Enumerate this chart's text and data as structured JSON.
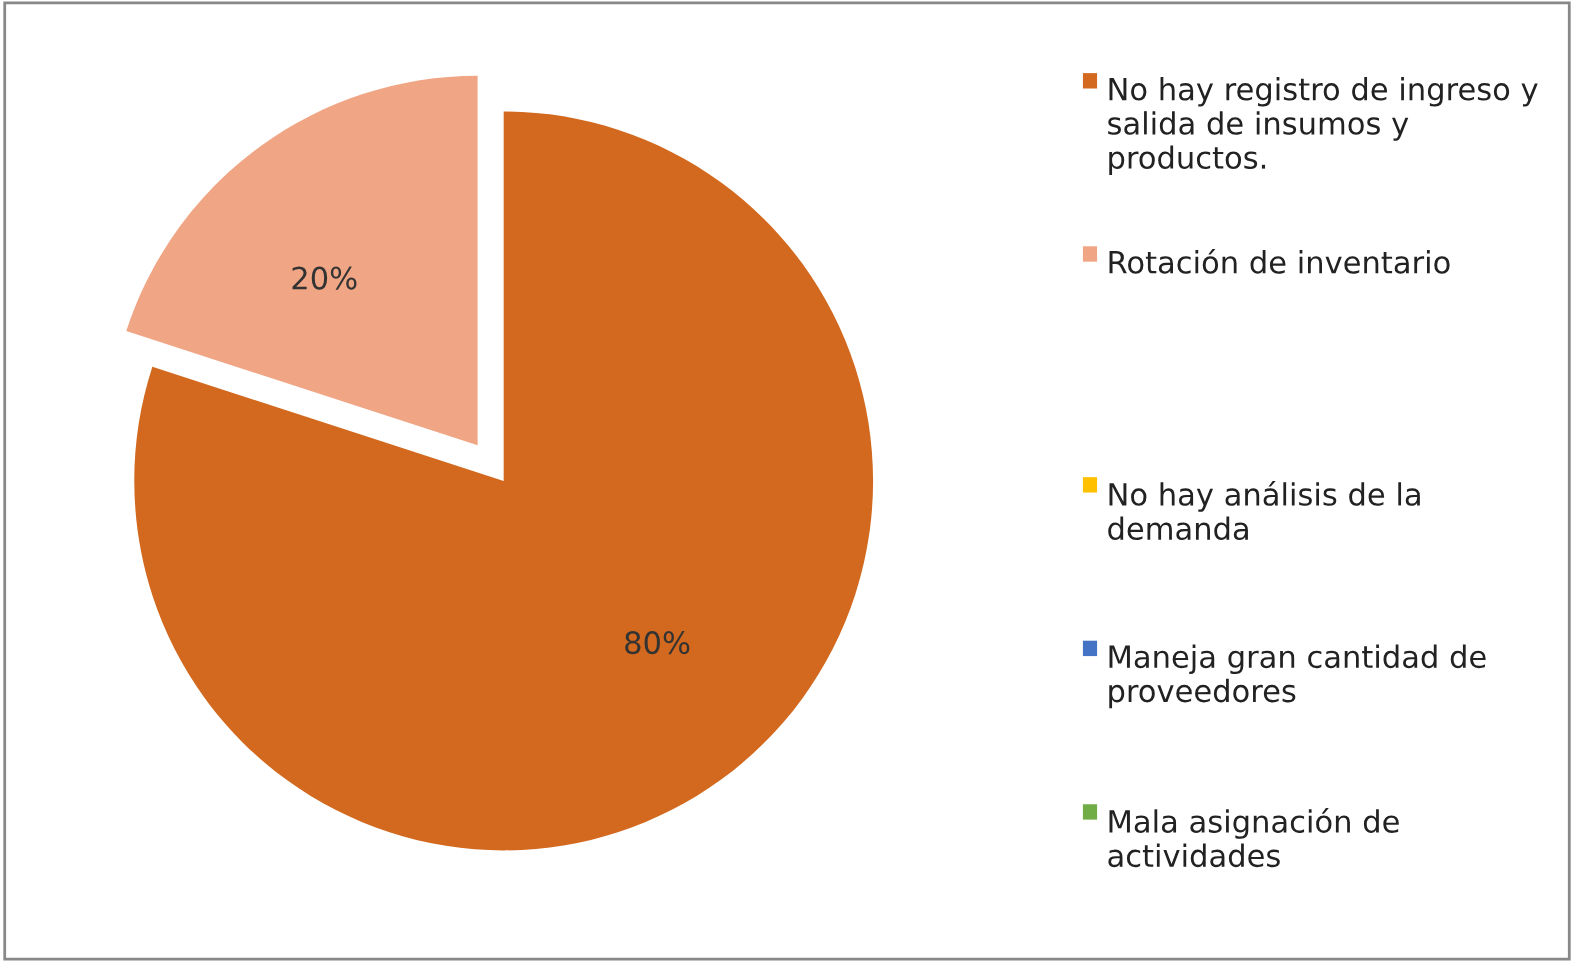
{
  "chart_data": {
    "type": "pie",
    "categories": [
      "No hay registro de ingreso y salida de insumos y productos.",
      "Rotación de inventario",
      "No hay análisis de la demanda",
      "Maneja gran cantidad de proveedores",
      "Mala asignación de actividades"
    ],
    "values": [
      80,
      20,
      0,
      0,
      0
    ],
    "colors": [
      "#d2691e",
      "#f0a584",
      "#ffc000",
      "#4472c4",
      "#70ad47"
    ],
    "value_labels": [
      "80%",
      "20%",
      null,
      null,
      null
    ],
    "legend": "right"
  }
}
